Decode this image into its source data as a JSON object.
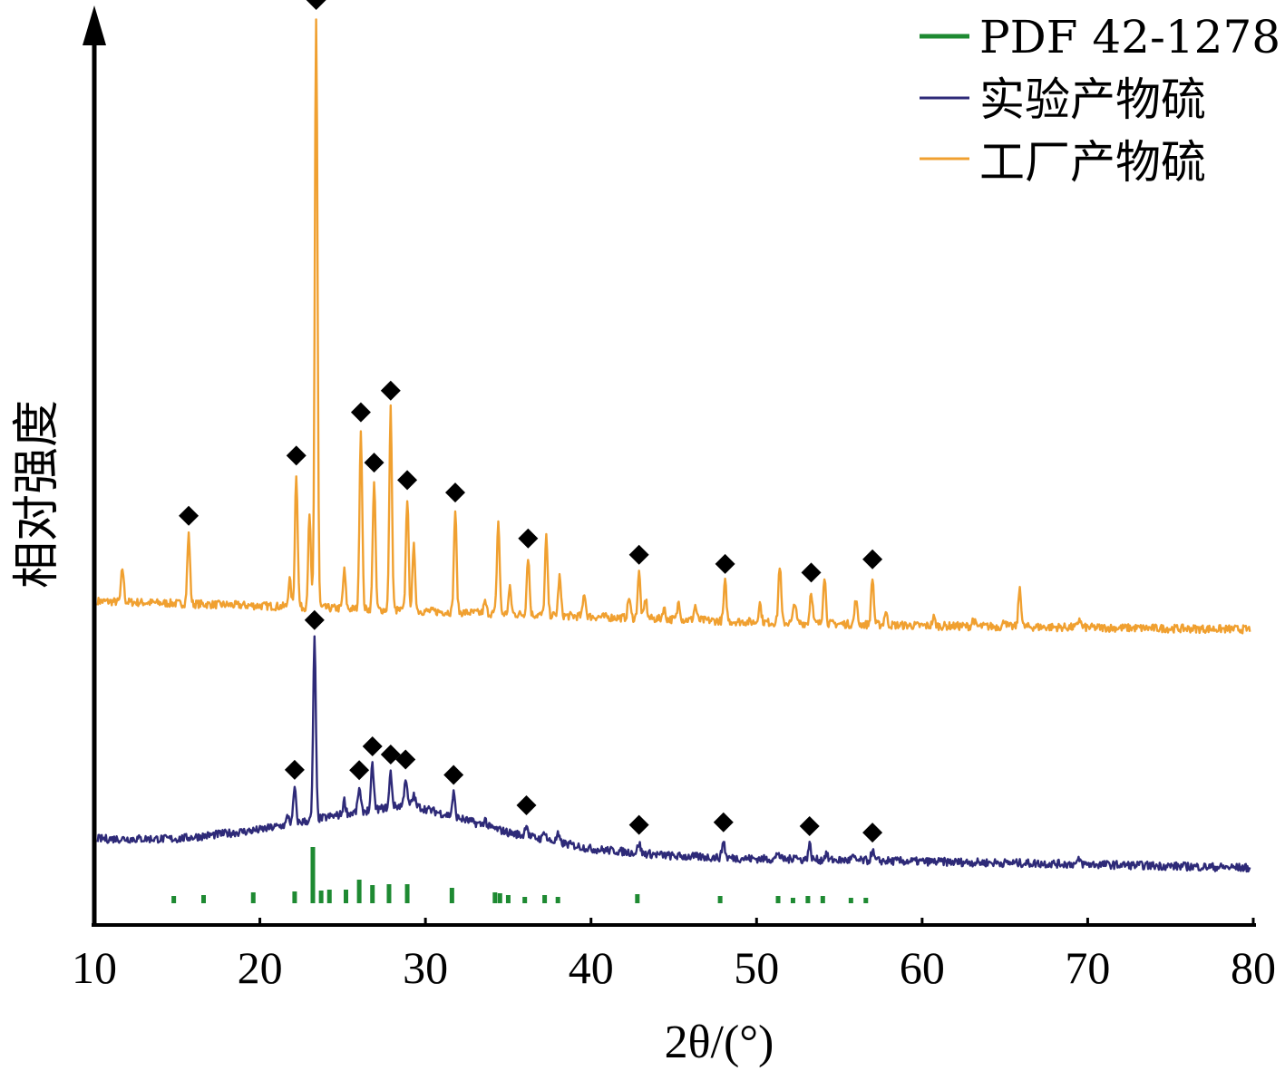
{
  "chart_data": {
    "type": "line",
    "xlabel": "2θ/(°)",
    "ylabel": "相对强度",
    "xlim": [
      10,
      80
    ],
    "xticks": [
      10,
      20,
      30,
      40,
      50,
      60,
      70,
      80
    ],
    "y_units": "relative intensity (0-100, full plot height)",
    "ylim": [
      0,
      100
    ],
    "legend_position": "top-right",
    "legend": [
      {
        "label": "PDF 42-1278",
        "color": "#1e8a32"
      },
      {
        "label": "实验产物硫",
        "color": "#2e2a78"
      },
      {
        "label": "工厂产物硫",
        "color": "#f0a030"
      }
    ],
    "series": [
      {
        "name": "工厂产物硫",
        "color": "#f0a030",
        "baseline": [
          [
            10.2,
            35.7
          ],
          [
            20,
            35.2
          ],
          [
            30,
            34.6
          ],
          [
            40,
            34.0
          ],
          [
            50,
            33.4
          ],
          [
            60,
            33.0
          ],
          [
            70,
            32.8
          ],
          [
            79.8,
            32.6
          ]
        ],
        "peaks": [
          [
            11.7,
            3.7
          ],
          [
            15.7,
            7.7
          ],
          [
            21.8,
            3.0
          ],
          [
            22.2,
            14.7
          ],
          [
            23.0,
            10.0
          ],
          [
            23.4,
            65.0
          ],
          [
            25.1,
            4.2
          ],
          [
            26.1,
            19.7
          ],
          [
            26.9,
            14.2
          ],
          [
            27.9,
            22.2
          ],
          [
            28.9,
            12.4
          ],
          [
            29.3,
            7.1
          ],
          [
            31.8,
            11.2
          ],
          [
            33.6,
            1.2
          ],
          [
            34.4,
            10.2
          ],
          [
            35.1,
            2.8
          ],
          [
            36.2,
            6.4
          ],
          [
            37.3,
            8.6
          ],
          [
            38.1,
            4.3
          ],
          [
            39.6,
            2.6
          ],
          [
            42.3,
            2.3
          ],
          [
            42.9,
            5.0
          ],
          [
            43.3,
            2.1
          ],
          [
            44.4,
            1.2
          ],
          [
            45.3,
            2.0
          ],
          [
            46.3,
            1.6
          ],
          [
            48.1,
            4.3
          ],
          [
            50.2,
            2.1
          ],
          [
            51.4,
            6.3
          ],
          [
            52.3,
            2.4
          ],
          [
            53.3,
            3.6
          ],
          [
            54.1,
            5.3
          ],
          [
            56.0,
            2.7
          ],
          [
            57.0,
            5.2
          ],
          [
            57.8,
            1.5
          ],
          [
            60.7,
            0.9
          ],
          [
            63.1,
            0.8
          ],
          [
            65.0,
            0.8
          ],
          [
            65.9,
            4.4
          ],
          [
            69.5,
            1.0
          ]
        ],
        "markers": [
          15.7,
          22.2,
          23.4,
          26.1,
          26.9,
          27.9,
          28.9,
          31.8,
          36.2,
          42.9,
          48.1,
          53.3,
          57.0
        ]
      },
      {
        "name": "实验产物硫",
        "color": "#2e2a78",
        "baseline": [
          [
            10.2,
            9.5
          ],
          [
            15,
            9.5
          ],
          [
            20,
            10.5
          ],
          [
            25,
            12.2
          ],
          [
            29,
            13.3
          ],
          [
            32,
            11.8
          ],
          [
            35,
            10.2
          ],
          [
            40,
            8.4
          ],
          [
            45,
            7.6
          ],
          [
            50,
            7.3
          ],
          [
            60,
            7.0
          ],
          [
            70,
            6.7
          ],
          [
            79.8,
            6.3
          ]
        ],
        "peaks": [
          [
            21.7,
            1.0
          ],
          [
            22.1,
            3.9
          ],
          [
            23.3,
            20.0
          ],
          [
            25.1,
            1.5
          ],
          [
            26.0,
            2.6
          ],
          [
            26.8,
            5.0
          ],
          [
            27.9,
            3.8
          ],
          [
            28.8,
            3.0
          ],
          [
            29.3,
            1.2
          ],
          [
            31.7,
            2.6
          ],
          [
            33.6,
            0.7
          ],
          [
            36.1,
            1.4
          ],
          [
            37.2,
            1.0
          ],
          [
            38.0,
            0.8
          ],
          [
            42.9,
            1.1
          ],
          [
            48.0,
            1.9
          ],
          [
            51.3,
            0.8
          ],
          [
            52.3,
            0.6
          ],
          [
            53.2,
            1.7
          ],
          [
            54.2,
            0.7
          ],
          [
            55.8,
            0.4
          ],
          [
            57.0,
            1.1
          ],
          [
            69.5,
            0.5
          ]
        ],
        "markers": [
          22.1,
          23.3,
          26.0,
          26.8,
          27.9,
          28.8,
          31.7,
          36.1,
          42.9,
          48.0,
          53.2,
          57.0
        ]
      },
      {
        "name": "PDF 42-1278",
        "color": "#1e8a32",
        "sticks": [
          [
            14.8,
            0.8
          ],
          [
            16.6,
            0.9
          ],
          [
            19.6,
            1.2
          ],
          [
            22.1,
            1.3
          ],
          [
            23.2,
            6.2
          ],
          [
            23.7,
            1.4
          ],
          [
            24.2,
            1.5
          ],
          [
            25.2,
            1.5
          ],
          [
            26.0,
            2.6
          ],
          [
            26.8,
            2.0
          ],
          [
            27.8,
            2.1
          ],
          [
            28.9,
            2.1
          ],
          [
            31.6,
            1.7
          ],
          [
            34.2,
            1.2
          ],
          [
            34.5,
            1.1
          ],
          [
            35.0,
            0.9
          ],
          [
            36.0,
            0.7
          ],
          [
            37.2,
            0.9
          ],
          [
            38.0,
            0.7
          ],
          [
            42.8,
            1.0
          ],
          [
            47.8,
            0.8
          ],
          [
            51.3,
            0.8
          ],
          [
            52.2,
            0.6
          ],
          [
            53.1,
            0.8
          ],
          [
            54.0,
            0.8
          ],
          [
            55.7,
            0.6
          ],
          [
            56.6,
            0.6
          ]
        ]
      }
    ]
  }
}
